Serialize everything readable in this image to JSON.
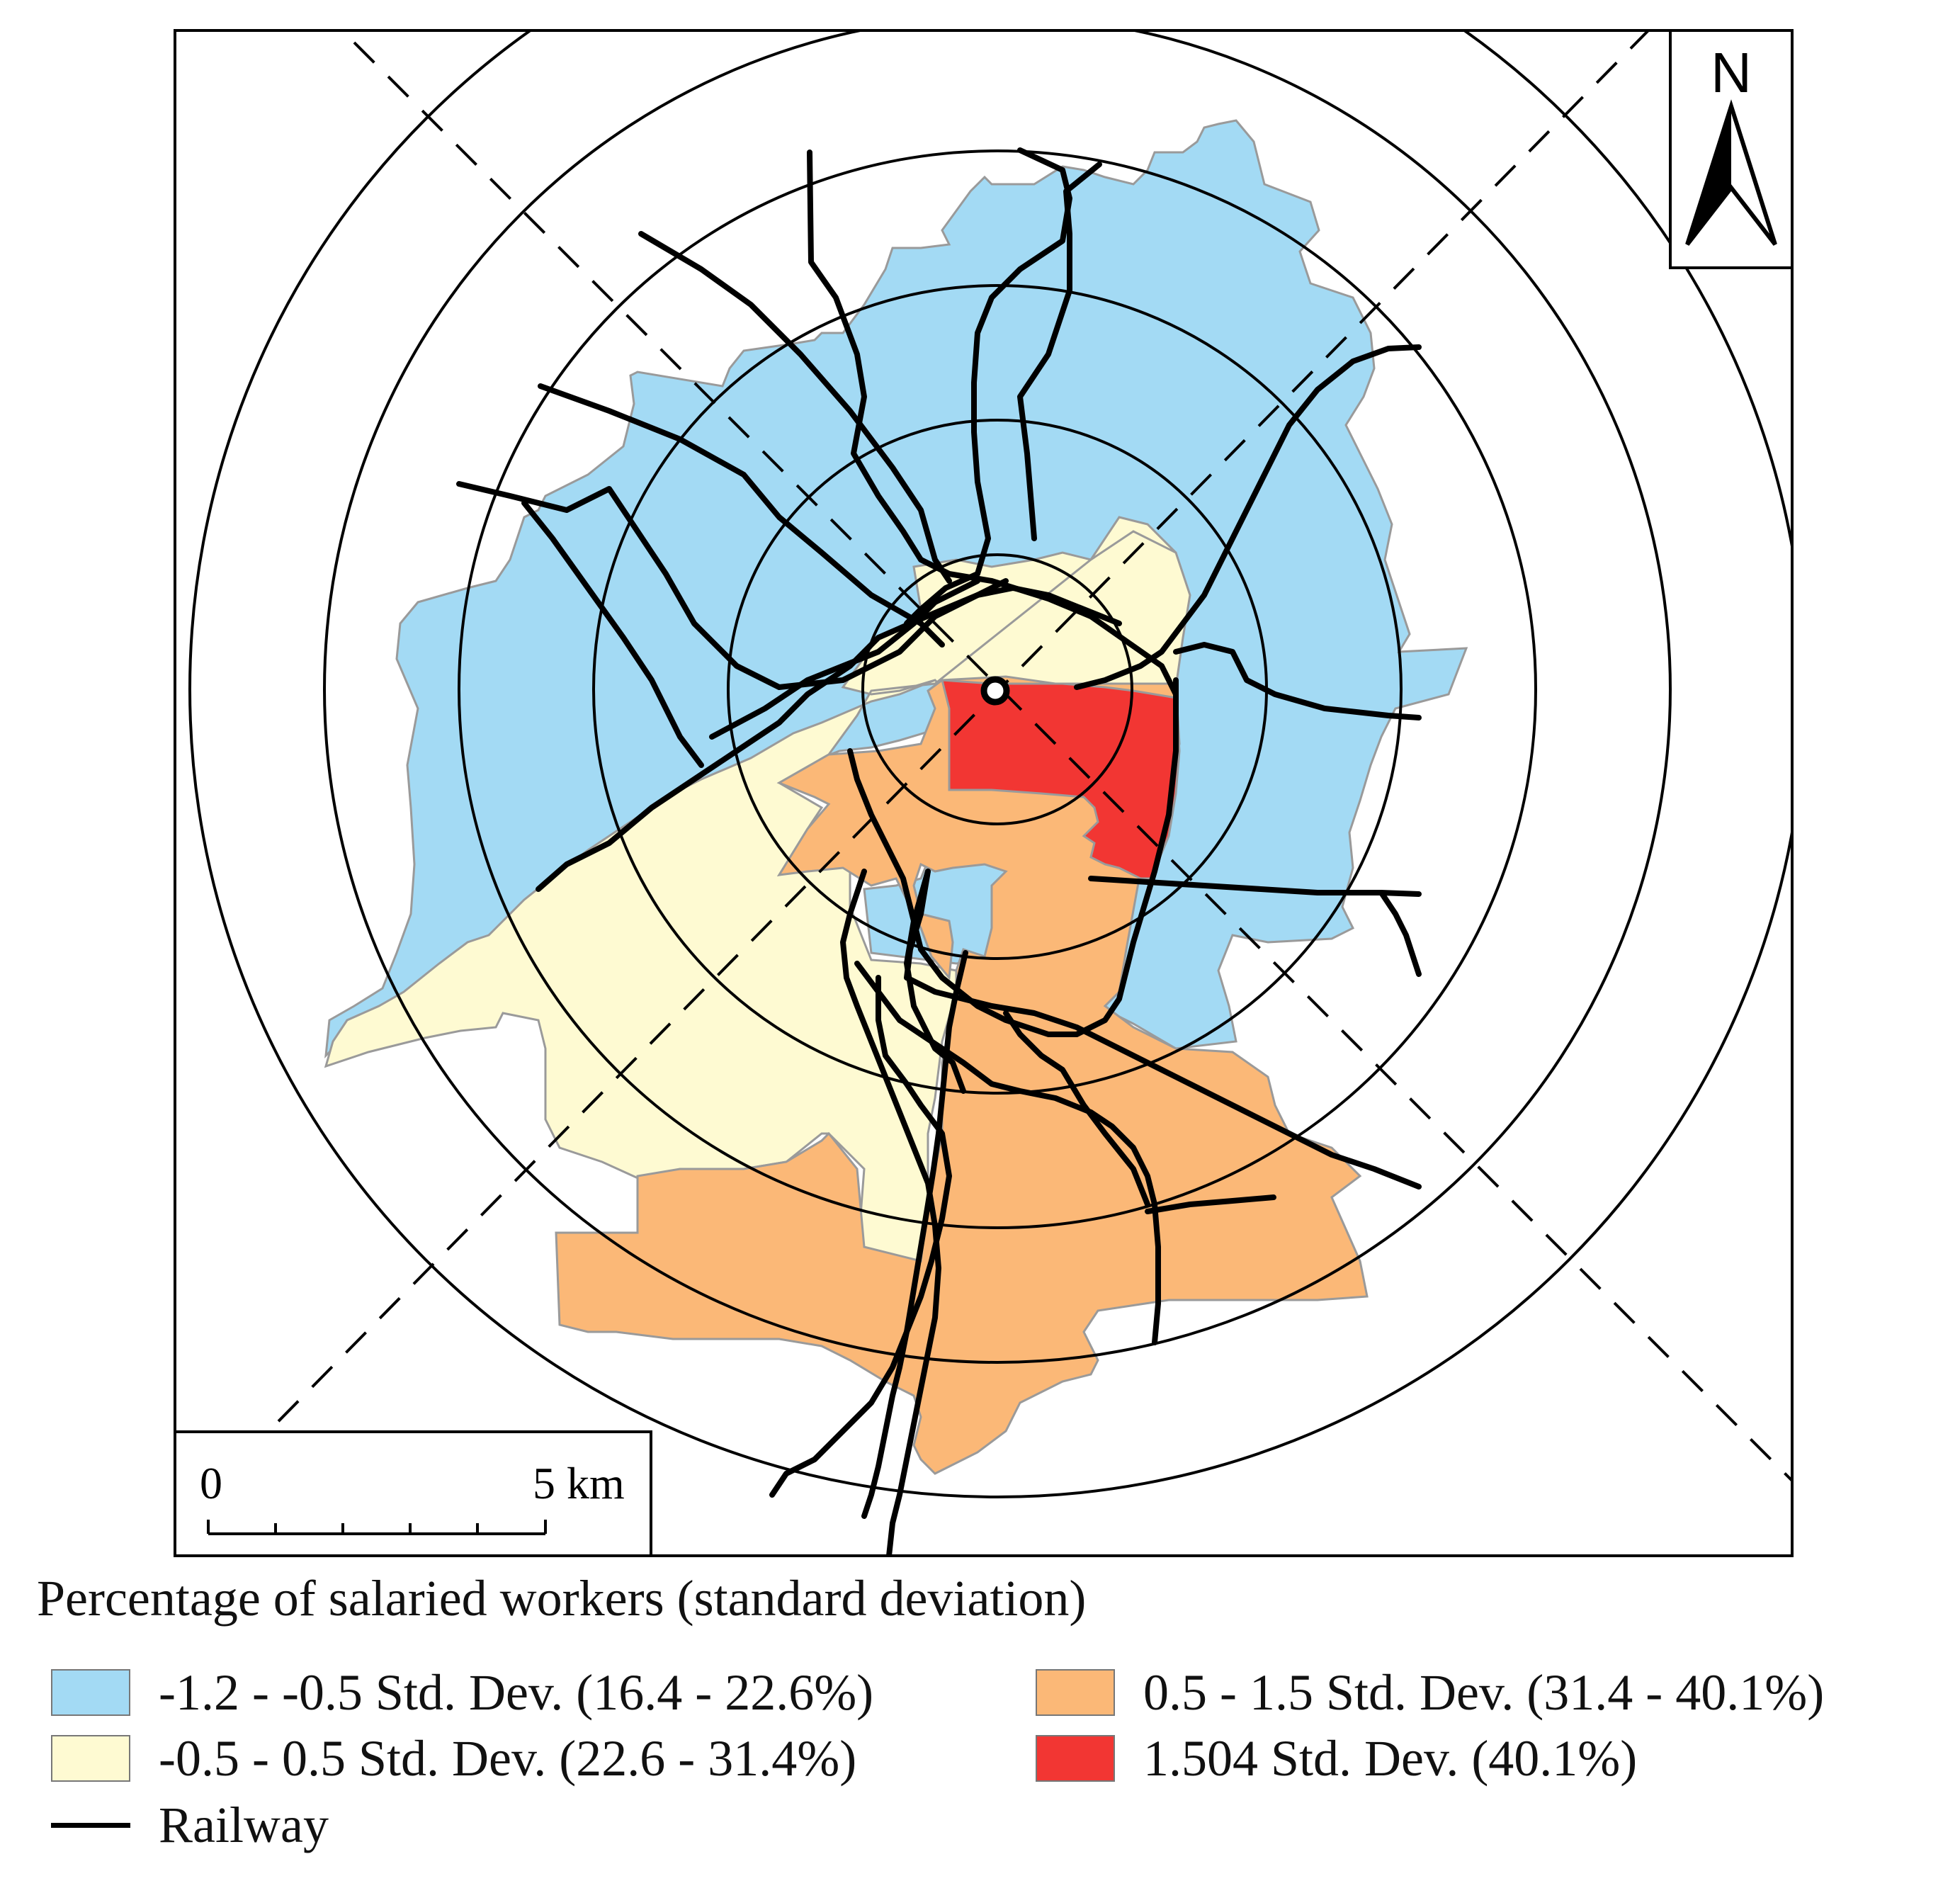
{
  "north_arrow": {
    "label": "N"
  },
  "scale_bar": {
    "start": "0",
    "end": "5 km"
  },
  "legend": {
    "title": "Percentage of salaried workers (standard deviation)",
    "items": [
      {
        "label": "-1.2 - -0.5 Std. Dev. (16.4 - 22.6%)",
        "color": "#a3daf4"
      },
      {
        "label": "0.5 - 1.5 Std. Dev. (31.4 - 40.1%)",
        "color": "#fbb877"
      },
      {
        "label": "-0.5 - 0.5 Std. Dev. (22.6 - 31.4%)",
        "color": "#fefad2"
      },
      {
        "label": "1.504 Std. Dev. (40.1%)",
        "color": "#f23633"
      }
    ],
    "railway_label": "Railway"
  },
  "colors": {
    "frame": "#000000",
    "boundary": "#9a9a9a"
  }
}
